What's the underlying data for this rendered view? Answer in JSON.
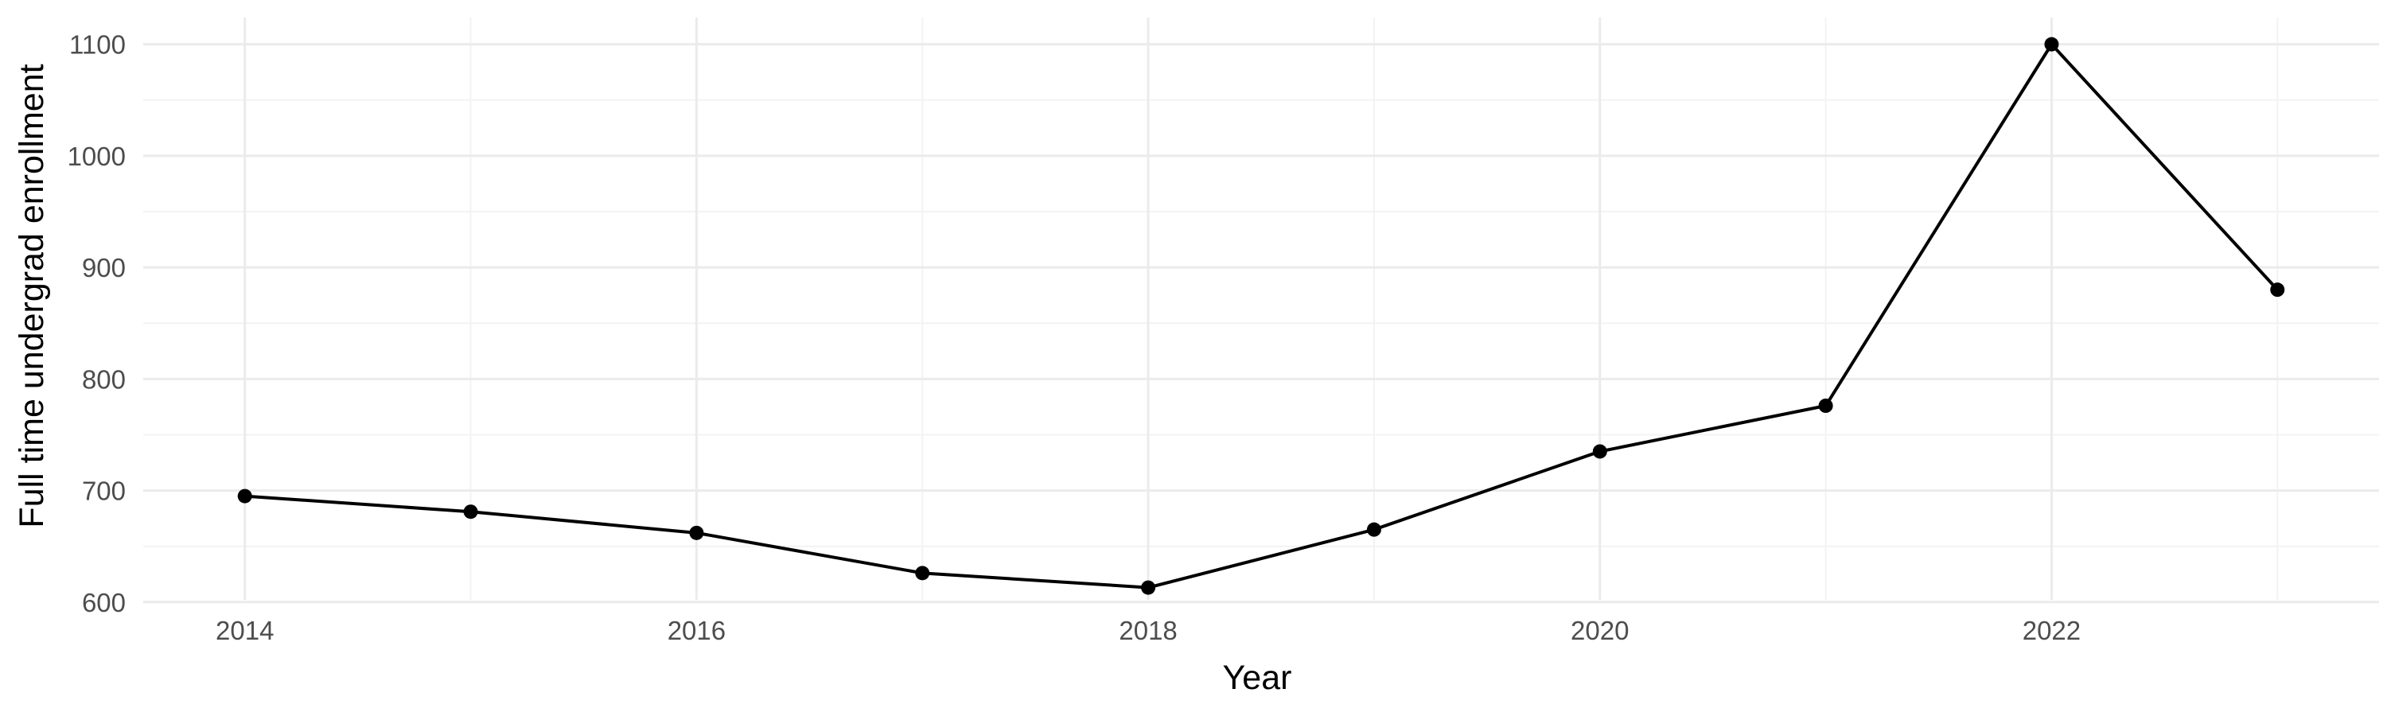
{
  "chart_data": {
    "type": "line",
    "title": "",
    "xlabel": "Year",
    "ylabel": "Full time undergrad enrollment",
    "x": [
      2014,
      2015,
      2016,
      2017,
      2018,
      2019,
      2020,
      2021,
      2022,
      2023
    ],
    "series": [
      {
        "values": [
          695,
          681,
          662,
          626,
          613,
          665,
          735,
          776,
          1100,
          880
        ]
      }
    ],
    "x_ticks": [
      "2014",
      "2016",
      "2018",
      "2020",
      "2022"
    ],
    "y_ticks": [
      "600",
      "700",
      "800",
      "900",
      "1000",
      "1100"
    ],
    "xlim": [
      2013.55,
      2023.45
    ],
    "ylim": [
      602,
      1124
    ],
    "grid": true,
    "colors": {
      "line": "#000000",
      "grid": "#ebebeb",
      "background": "#ffffff"
    }
  }
}
